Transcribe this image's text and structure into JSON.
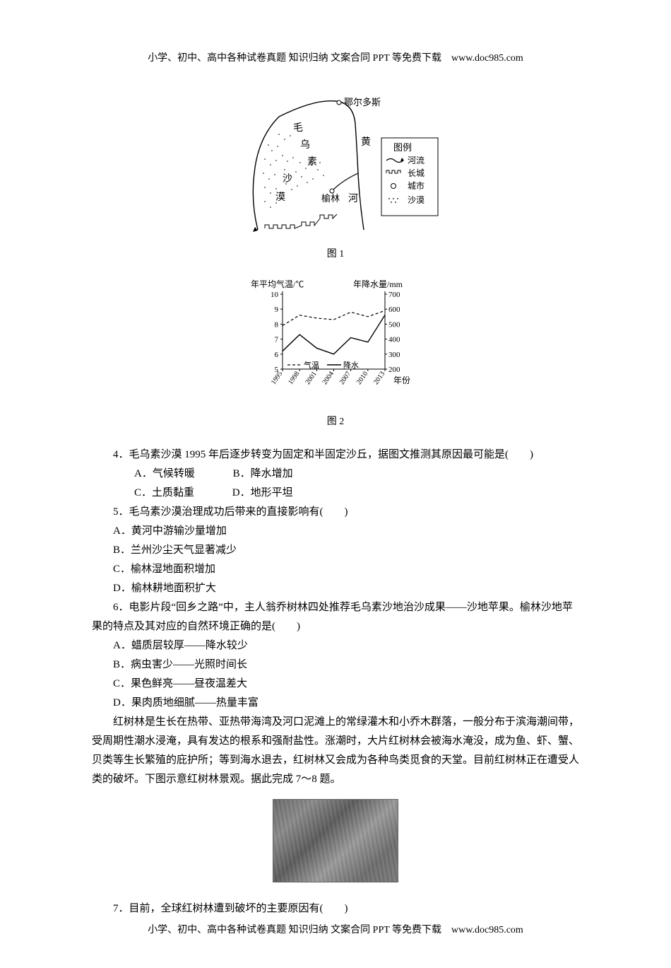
{
  "header_footer": "小学、初中、高中各种试卷真题  知识归纳  文案合同  PPT 等免费下载　www.doc985.com",
  "map": {
    "caption": "图 1",
    "labels": {
      "ordos": "鄂尔多斯",
      "mao": "毛",
      "wu": "乌",
      "su": "素",
      "sha": "沙",
      "mo": "漠",
      "yulin": "榆林",
      "yellow": "黄",
      "river": "河"
    },
    "legend": {
      "title": "图例",
      "river": "河流",
      "wall": "长城",
      "city": "城市",
      "desert": "沙漠"
    },
    "colors": {
      "stroke": "#000000",
      "bg": "#ffffff",
      "dotfill": "#000000"
    }
  },
  "chart": {
    "caption": "图 2",
    "left_axis_title": "年平均气温/℃",
    "right_axis_title": "年降水量/mm",
    "left_ticks": [
      "10",
      "9",
      "8",
      "7",
      "6",
      "5"
    ],
    "right_ticks": [
      "700",
      "600",
      "500",
      "400",
      "300",
      "200"
    ],
    "years": [
      "1995",
      "1998",
      "2001",
      "2004",
      "2007",
      "2010",
      "2013"
    ],
    "x_label": "年份",
    "legend_temp": "气温",
    "legend_precip": "降水",
    "temp_series": [
      7.9,
      8.6,
      8.4,
      8.3,
      8.8,
      8.5,
      8.9
    ],
    "precip_series": [
      320,
      430,
      340,
      300,
      410,
      380,
      560
    ],
    "left_min": 5,
    "left_max": 10,
    "right_min": 200,
    "right_max": 700,
    "colors": {
      "axis": "#000000",
      "temp": "#000000",
      "precip": "#000000",
      "bg": "#ffffff"
    }
  },
  "q4": {
    "stem": "4．毛乌素沙漠 1995 年后逐步转变为固定和半固定沙丘，据图文推测其原因最可能是(　　)",
    "a": "A．气候转暖",
    "b": "B．降水增加",
    "c": "C．土质黏重",
    "d": "D．地形平坦"
  },
  "q5": {
    "stem": "5．毛乌素沙漠治理成功后带来的直接影响有(　　)",
    "a": "A．黄河中游输沙量增加",
    "b": "B．兰州沙尘天气显著减少",
    "c": "C．榆林湿地面积增加",
    "d": "D．榆林耕地面积扩大"
  },
  "q6": {
    "stem": "6．电影片段“回乡之路”中，主人翁乔树林四处推荐毛乌素沙地治沙成果——沙地苹果。榆林沙地苹果的特点及其对应的自然环境正确的是(　　)",
    "a": "A．蜡质层较厚——降水较少",
    "b": "B．病虫害少——光照时间长",
    "c": "C．果色鲜亮——昼夜温差大",
    "d": "D．果肉质地细腻——热量丰富"
  },
  "passage": "红树林是生长在热带、亚热带海湾及河口泥滩上的常绿灌木和小乔木群落，一般分布于滨海潮间带，受周期性潮水浸淹，具有发达的根系和强耐盐性。涨潮时，大片红树林会被海水淹没，成为鱼、虾、蟹、贝类等生长繁殖的庇护所；等到海水退去，红树林又会成为各种鸟类觅食的天堂。目前红树林正在遭受人类的破坏。下图示意红树林景观。据此完成 7～8 题。",
  "q7": {
    "stem": "7．目前，全球红树林遭到破坏的主要原因有(　　)"
  }
}
